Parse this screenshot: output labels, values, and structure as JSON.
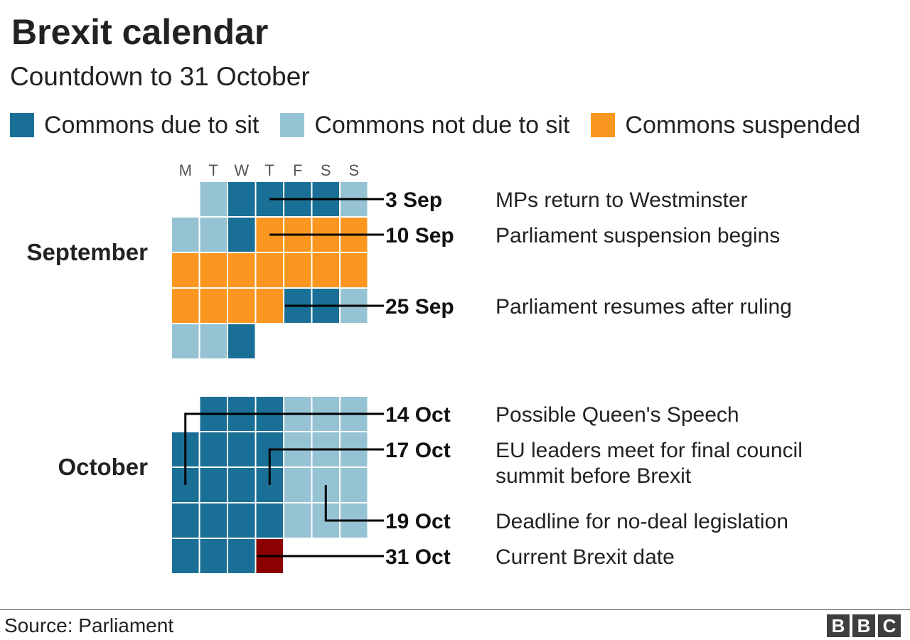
{
  "title": "Brexit calendar",
  "subtitle": "Countdown to 31 October",
  "legend": [
    {
      "label": "Commons due to sit",
      "color": "#1a6f96"
    },
    {
      "label": "Commons not due to sit",
      "color": "#95c3d4"
    },
    {
      "label": "Commons suspended",
      "color": "#fb9620"
    }
  ],
  "source": "Source: Parliament",
  "logo_letters": [
    "B",
    "B",
    "C"
  ],
  "chart_data": {
    "type": "calendar",
    "day_headers": [
      "M",
      "T",
      "W",
      "T",
      "F",
      "S",
      "S"
    ],
    "status_colors": {
      "sit": "#1a6f96",
      "nosit": "#95c3d4",
      "suspended": "#fb9620",
      "brexit": "#8b0000"
    },
    "months": [
      {
        "name": "September",
        "first_weekday": 1,
        "days": 30,
        "status": {
          "1": "nosit",
          "2": "sit",
          "3": "sit",
          "4": "sit",
          "5": "sit",
          "6": "nosit",
          "7": "nosit",
          "8": "nosit",
          "9": "sit",
          "10": "suspended",
          "11": "suspended",
          "12": "suspended",
          "13": "suspended",
          "14": "suspended",
          "15": "suspended",
          "16": "suspended",
          "17": "suspended",
          "18": "suspended",
          "19": "suspended",
          "20": "suspended",
          "21": "suspended",
          "22": "suspended",
          "23": "suspended",
          "24": "suspended",
          "25": "sit",
          "26": "sit",
          "27": "nosit",
          "28": "nosit",
          "29": "nosit",
          "30": "sit"
        },
        "annotations": [
          {
            "day": 3,
            "date": "3 Sep",
            "text": [
              "MPs return to Westminster"
            ]
          },
          {
            "day": 10,
            "date": "10 Sep",
            "text": [
              "Parliament suspension begins"
            ]
          },
          {
            "day": 25,
            "date": "25 Sep",
            "text": [
              "Parliament resumes after ruling"
            ]
          }
        ],
        "month_label_rows": [
          1,
          3
        ]
      },
      {
        "name": "October",
        "first_weekday": 1,
        "days": 31,
        "status": {
          "1": "sit",
          "2": "sit",
          "3": "sit",
          "4": "nosit",
          "5": "nosit",
          "6": "nosit",
          "7": "sit",
          "8": "sit",
          "9": "sit",
          "10": "sit",
          "11": "nosit",
          "12": "nosit",
          "13": "nosit",
          "14": "sit",
          "15": "sit",
          "16": "sit",
          "17": "sit",
          "18": "nosit",
          "19": "nosit",
          "20": "nosit",
          "21": "sit",
          "22": "sit",
          "23": "sit",
          "24": "sit",
          "25": "nosit",
          "26": "nosit",
          "27": "nosit",
          "28": "sit",
          "29": "sit",
          "30": "sit",
          "31": "brexit"
        },
        "annotations": [
          {
            "day": 14,
            "date": "14 Oct",
            "text": [
              "Possible Queen's Speech"
            ]
          },
          {
            "day": 17,
            "date": "17 Oct",
            "text": [
              "EU leaders meet for final council",
              "summit before Brexit"
            ]
          },
          {
            "day": 19,
            "date": "19 Oct",
            "text": [
              "Deadline for no-deal legislation"
            ]
          },
          {
            "day": 31,
            "date": "31 Oct",
            "text": [
              "Current Brexit date"
            ]
          }
        ],
        "month_label_rows": [
          1,
          3
        ]
      }
    ]
  }
}
